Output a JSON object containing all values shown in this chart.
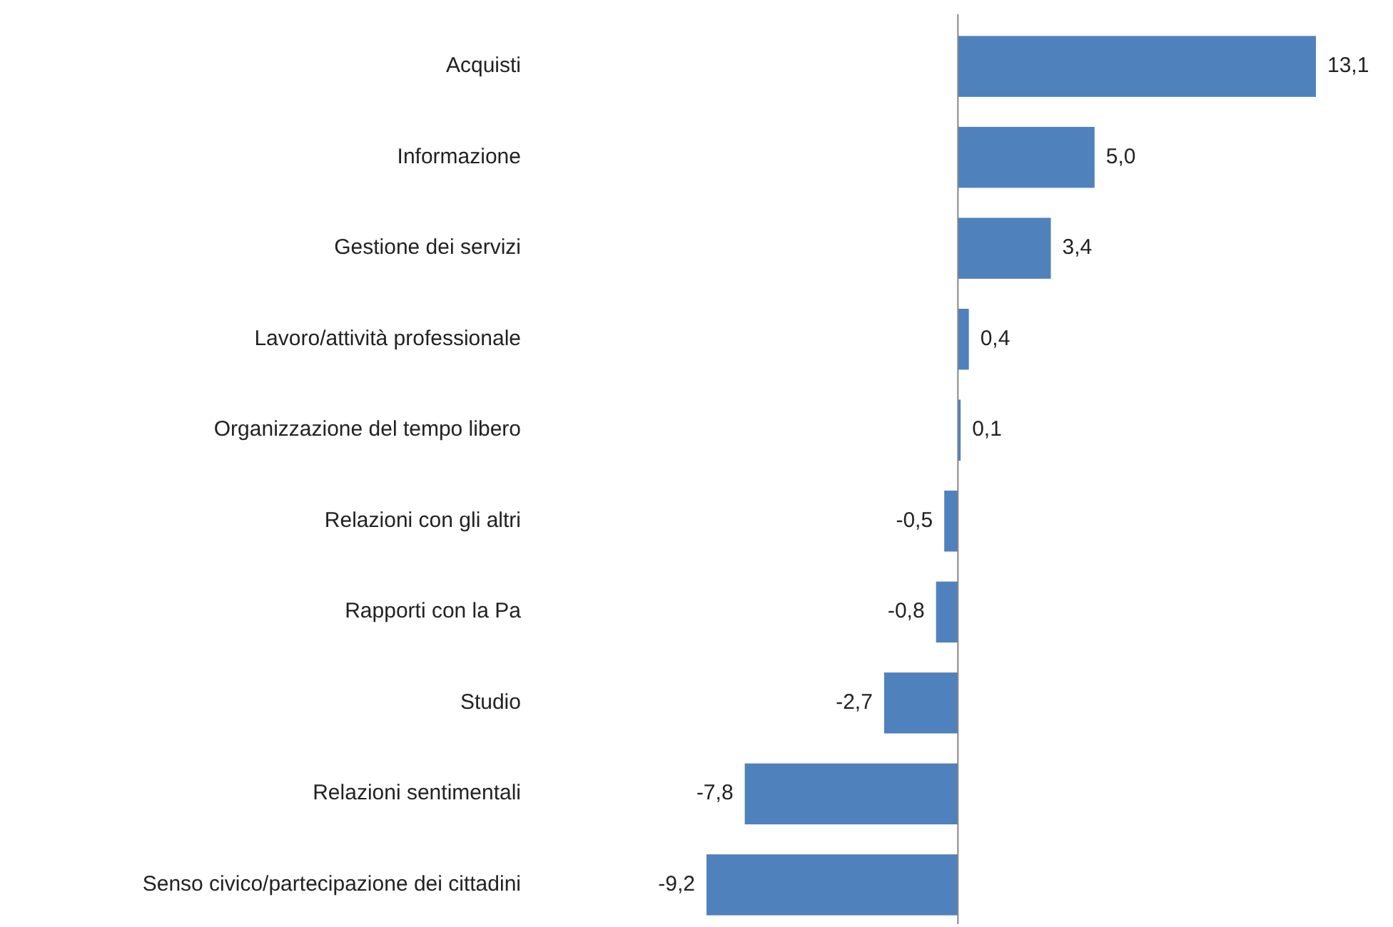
{
  "chart_data": {
    "type": "bar",
    "orientation": "horizontal",
    "color": "#4f81bd",
    "categories": [
      "Acquisti",
      "Informazione",
      "Gestione dei servizi",
      "Lavoro/attività professionale",
      "Organizzazione del tempo libero",
      "Relazioni con gli altri",
      "Rapporti con la Pa",
      "Studio",
      "Relazioni sentimentali",
      "Senso civico/partecipazione dei cittadini"
    ],
    "values": [
      13.1,
      5.0,
      3.4,
      0.4,
      0.1,
      -0.5,
      -0.8,
      -2.7,
      -7.8,
      -9.2
    ],
    "value_labels": [
      "13,1",
      "5,0",
      "3,4",
      "0,4",
      "0,1",
      "-0,5",
      "-0,8",
      "-2,7",
      "-7,8",
      "-9,2"
    ]
  }
}
